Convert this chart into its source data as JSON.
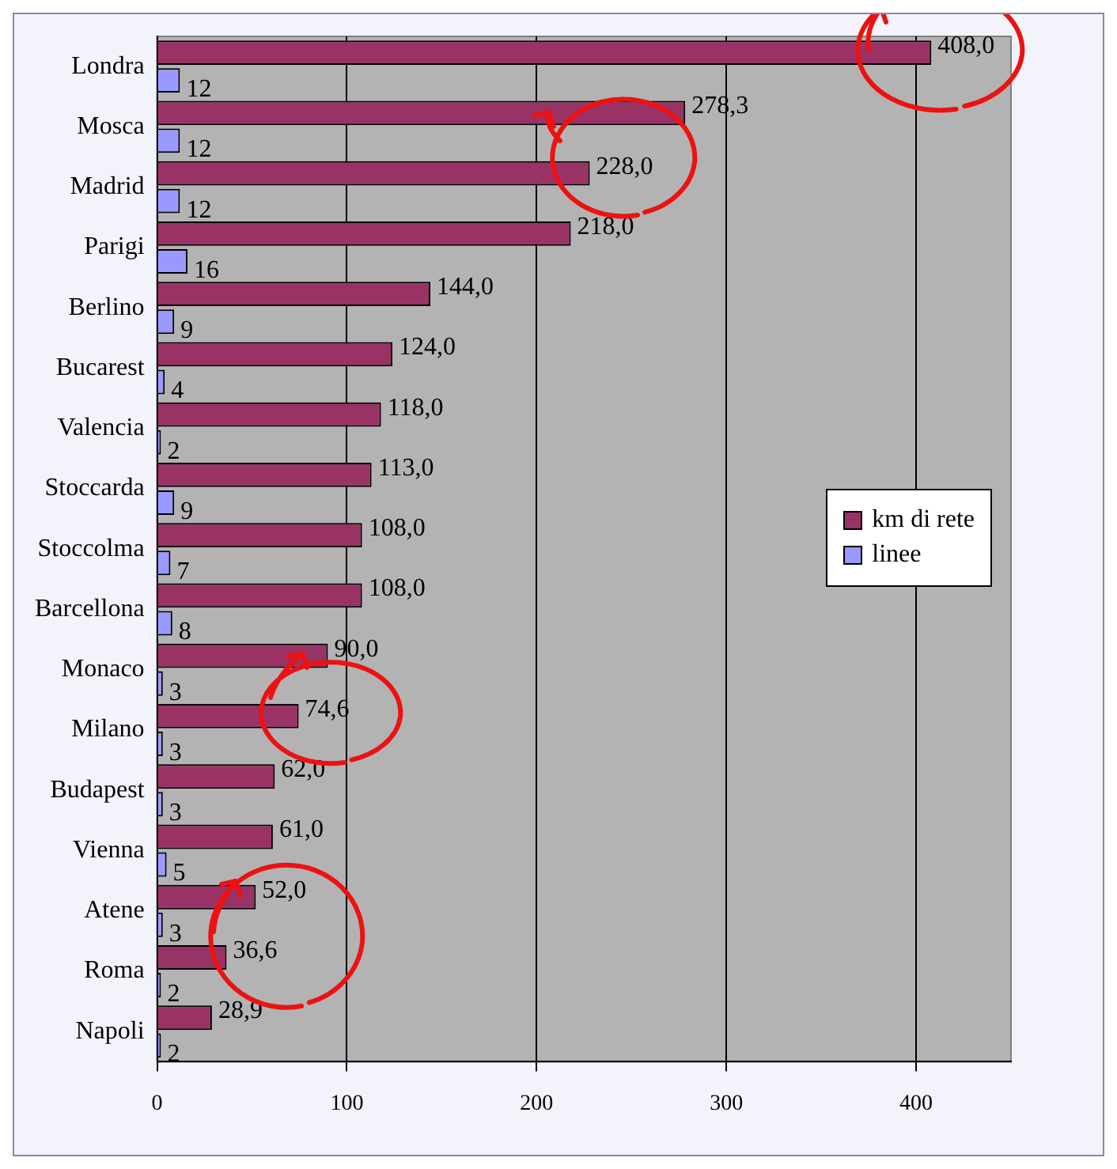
{
  "chart_data": {
    "type": "bar",
    "orientation": "horizontal",
    "categories": [
      "Londra",
      "Mosca",
      "Madrid",
      "Parigi",
      "Berlino",
      "Bucarest",
      "Valencia",
      "Stoccarda",
      "Stoccolma",
      "Barcellona",
      "Monaco",
      "Milano",
      "Budapest",
      "Vienna",
      "Atene",
      "Roma",
      "Napoli"
    ],
    "series": [
      {
        "name": "km di rete",
        "color": "#993366",
        "values": [
          408,
          278.3,
          228,
          218,
          144,
          124,
          118,
          113,
          108,
          108,
          90,
          74.6,
          62,
          61,
          52,
          36.6,
          28.9
        ],
        "value_labels": [
          "408,0",
          "278,3",
          "228,0",
          "218,0",
          "144,0",
          "124,0",
          "118,0",
          "113,0",
          "108,0",
          "108,0",
          "90,0",
          "74,6",
          "62,0",
          "61,0",
          "52,0",
          "36,6",
          "28,9"
        ]
      },
      {
        "name": "linee",
        "color": "#9999ff",
        "values": [
          12,
          12,
          12,
          16,
          9,
          4,
          2,
          9,
          7,
          8,
          3,
          3,
          3,
          5,
          3,
          2,
          2
        ],
        "value_labels": [
          "12",
          "12",
          "12",
          "16",
          "9",
          "4",
          "2",
          "9",
          "7",
          "8",
          "3",
          "3",
          "3",
          "5",
          "3",
          "2",
          "2"
        ]
      }
    ],
    "xlim": [
      0,
      450
    ],
    "xticks": [
      0,
      100,
      200,
      300,
      400
    ],
    "grid": "x",
    "legend": "right"
  }
}
